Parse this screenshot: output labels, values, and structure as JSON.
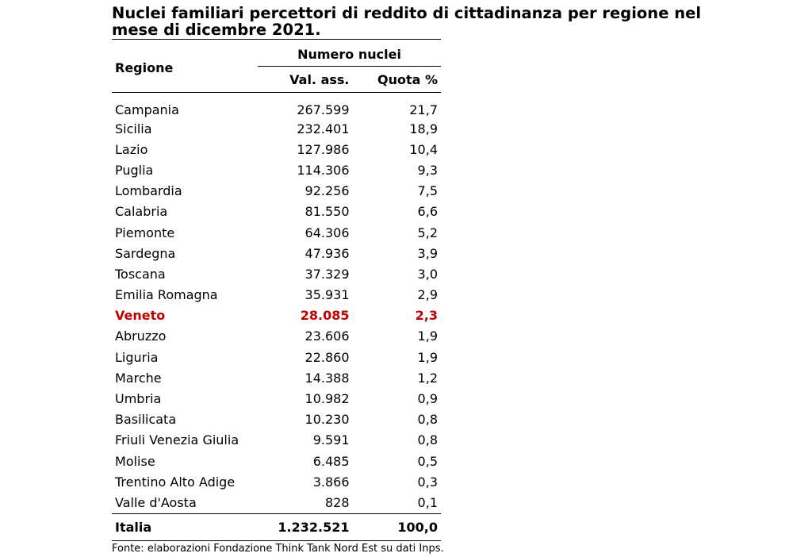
{
  "title": "Nuclei familiari percettori di reddito di cittadinanza per regione nel mese di dicembre 2021.",
  "header": {
    "region_label": "Regione",
    "group_label": "Numero nuclei",
    "col_abs": "Val. ass.",
    "col_share": "Quota %"
  },
  "rows": [
    {
      "region": "Campania",
      "abs": "267.599",
      "share": "21,7"
    },
    {
      "region": "Sicilia",
      "abs": "232.401",
      "share": "18,9"
    },
    {
      "region": "Lazio",
      "abs": "127.986",
      "share": "10,4"
    },
    {
      "region": "Puglia",
      "abs": "114.306",
      "share": "9,3"
    },
    {
      "region": "Lombardia",
      "abs": "92.256",
      "share": "7,5"
    },
    {
      "region": "Calabria",
      "abs": "81.550",
      "share": "6,6"
    },
    {
      "region": "Piemonte",
      "abs": "64.306",
      "share": "5,2"
    },
    {
      "region": "Sardegna",
      "abs": "47.936",
      "share": "3,9"
    },
    {
      "region": "Toscana",
      "abs": "37.329",
      "share": "3,0"
    },
    {
      "region": "Emilia Romagna",
      "abs": "35.931",
      "share": "2,9"
    },
    {
      "region": "Veneto",
      "abs": "28.085",
      "share": "2,3",
      "highlight": true
    },
    {
      "region": "Abruzzo",
      "abs": "23.606",
      "share": "1,9"
    },
    {
      "region": "Liguria",
      "abs": "22.860",
      "share": "1,9"
    },
    {
      "region": "Marche",
      "abs": "14.388",
      "share": "1,2"
    },
    {
      "region": "Umbria",
      "abs": "10.982",
      "share": "0,9"
    },
    {
      "region": "Basilicata",
      "abs": "10.230",
      "share": "0,8"
    },
    {
      "region": "Friuli Venezia Giulia",
      "abs": "9.591",
      "share": "0,8"
    },
    {
      "region": "Molise",
      "abs": "6.485",
      "share": "0,5"
    },
    {
      "region": "Trentino Alto Adige",
      "abs": "3.866",
      "share": "0,3"
    },
    {
      "region": "Valle d'Aosta",
      "abs": "828",
      "share": "0,1"
    }
  ],
  "total": {
    "region": "Italia",
    "abs": "1.232.521",
    "share": "100,0"
  },
  "highlight_color": "#c00000",
  "source": "Fonte: elaborazioni Fondazione Think Tank Nord Est su dati Inps."
}
